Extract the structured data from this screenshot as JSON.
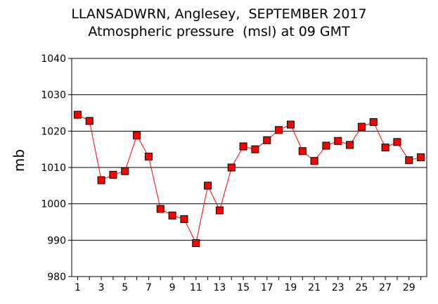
{
  "chart_data": {
    "type": "line",
    "title": "LLANSADWRN, Anglesey,  SEPTEMBER 2017",
    "subtitle": "Atmospheric pressure  (msl) at 09 GMT",
    "xlabel": "",
    "ylabel": "mb",
    "ylim": [
      980,
      1040
    ],
    "xlim": [
      0.5,
      30.5
    ],
    "y_ticks": [
      980,
      990,
      1000,
      1010,
      1020,
      1030,
      1040
    ],
    "x_ticks": [
      1,
      3,
      5,
      7,
      9,
      11,
      13,
      15,
      17,
      19,
      21,
      23,
      25,
      27,
      29
    ],
    "grid": "horizontal",
    "series_color": "#ff0000",
    "marker_color": "#ff0000",
    "marker_edge": "#000000",
    "x": [
      1,
      2,
      3,
      4,
      5,
      6,
      7,
      8,
      9,
      10,
      11,
      12,
      13,
      14,
      15,
      16,
      17,
      18,
      19,
      20,
      21,
      22,
      23,
      24,
      25,
      26,
      27,
      28,
      29,
      30
    ],
    "values": [
      1024.5,
      1022.8,
      1006.5,
      1008.0,
      1009.0,
      1018.8,
      1013.0,
      998.6,
      996.8,
      995.8,
      989.2,
      1005.0,
      998.2,
      1010.0,
      1015.8,
      1015.0,
      1017.5,
      1020.3,
      1021.8,
      1014.5,
      1011.8,
      1016.0,
      1017.3,
      1016.2,
      1021.2,
      1022.5,
      1015.5,
      1017.0,
      1012.0,
      1012.8
    ]
  }
}
